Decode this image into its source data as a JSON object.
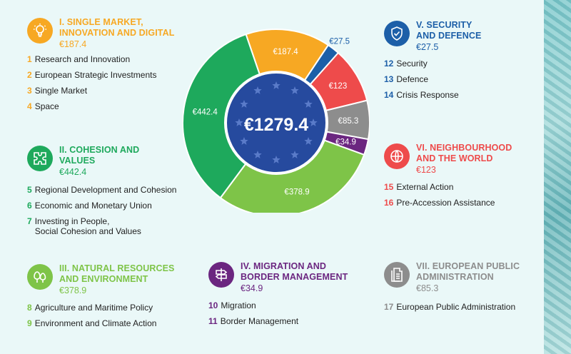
{
  "chart_data": {
    "type": "pie",
    "variant": "donut",
    "total_label": "€1279.4",
    "slices": [
      {
        "label": "€187.4",
        "value": 187.4,
        "color": "#f7a823"
      },
      {
        "label": "€27.5",
        "value": 27.5,
        "color": "#1d5fa8"
      },
      {
        "label": "€123",
        "value": 123,
        "color": "#ee4b4b"
      },
      {
        "label": "€85.3",
        "value": 85.3,
        "color": "#8d8d8d"
      },
      {
        "label": "€34.9",
        "value": 34.9,
        "color": "#6b2680"
      },
      {
        "label": "€378.9",
        "value": 378.9,
        "color": "#7ec448"
      },
      {
        "label": "€442.4",
        "value": 442.4,
        "color": "#1ea95c"
      }
    ]
  },
  "headings": [
    {
      "title1": "I. SINGLE MARKET,",
      "title2": "INNOVATION AND DIGITAL",
      "amount": "€187.4",
      "color": "#f7a823",
      "icon": "lightbulb-icon",
      "items": [
        {
          "num": "1",
          "name": "Research and Innovation"
        },
        {
          "num": "2",
          "name": "European Strategic Investments"
        },
        {
          "num": "3",
          "name": "Single Market"
        },
        {
          "num": "4",
          "name": "Space"
        }
      ]
    },
    {
      "title1": "II. COHESION AND",
      "title2": "VALUES",
      "amount": "€442.4",
      "color": "#1ea95c",
      "icon": "puzzle-icon",
      "items": [
        {
          "num": "5",
          "name": "Regional Development and Cohesion"
        },
        {
          "num": "6",
          "name": "Economic and Monetary Union"
        },
        {
          "num": "7",
          "name": "Investing in People,",
          "name2": "Social Cohesion and Values"
        }
      ]
    },
    {
      "title1": "III. NATURAL RESOURCES",
      "title2": "AND ENVIRONMENT",
      "amount": "€378.9",
      "color": "#7ec448",
      "icon": "trees-icon",
      "items": [
        {
          "num": "8",
          "name": "Agriculture and Maritime Policy"
        },
        {
          "num": "9",
          "name": "Environment and Climate Action"
        }
      ]
    },
    {
      "title1": "IV. MIGRATION AND",
      "title2": "BORDER MANAGEMENT",
      "amount": "€34.9",
      "color": "#6b2680",
      "icon": "signpost-icon",
      "items": [
        {
          "num": "10",
          "name": "Migration"
        },
        {
          "num": "11",
          "name": "Border Management"
        }
      ]
    },
    {
      "title1": "V. SECURITY",
      "title2": "AND DEFENCE",
      "amount": "€27.5",
      "color": "#1d5fa8",
      "icon": "shield-icon",
      "items": [
        {
          "num": "12",
          "name": "Security"
        },
        {
          "num": "13",
          "name": "Defence"
        },
        {
          "num": "14",
          "name": "Crisis Response"
        }
      ]
    },
    {
      "title1": "VI. NEIGHBOURHOOD",
      "title2": "AND THE WORLD",
      "amount": "€123",
      "color": "#ee4b4b",
      "icon": "globe-icon",
      "items": [
        {
          "num": "15",
          "name": "External Action"
        },
        {
          "num": "16",
          "name": "Pre-Accession Assistance"
        }
      ]
    },
    {
      "title1": "VII. EUROPEAN PUBLIC",
      "title2": "ADMINISTRATION",
      "amount": "€85.3",
      "color": "#8d8d8d",
      "icon": "documents-icon",
      "items": [
        {
          "num": "17",
          "name": "European Public Administration"
        }
      ]
    }
  ]
}
